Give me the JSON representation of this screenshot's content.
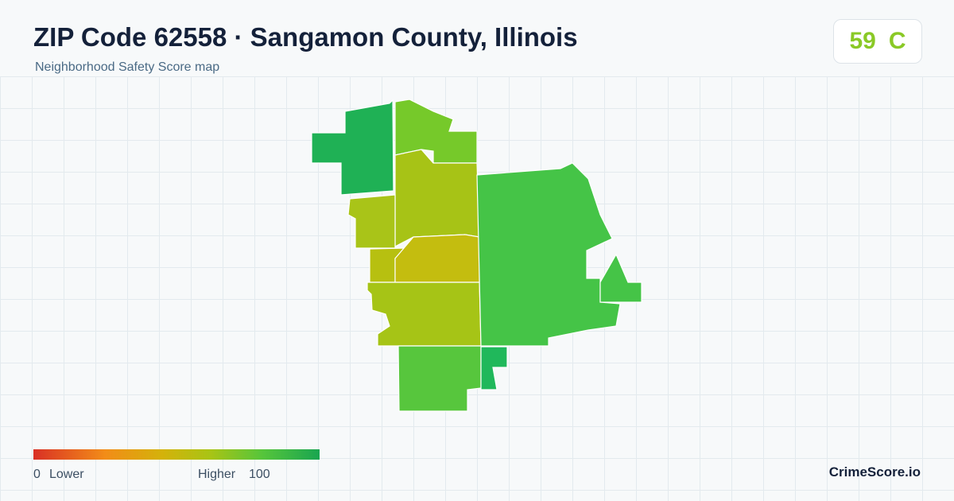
{
  "header": {
    "title": "ZIP Code 62558 · Sangamon County, Illinois",
    "subtitle": "Neighborhood Safety Score map"
  },
  "score": {
    "value": 59,
    "grade": "C"
  },
  "legend": {
    "min": 0,
    "min_label": "Lower",
    "max_label": "Higher",
    "max": 100
  },
  "brand": "CrimeScore.io"
}
